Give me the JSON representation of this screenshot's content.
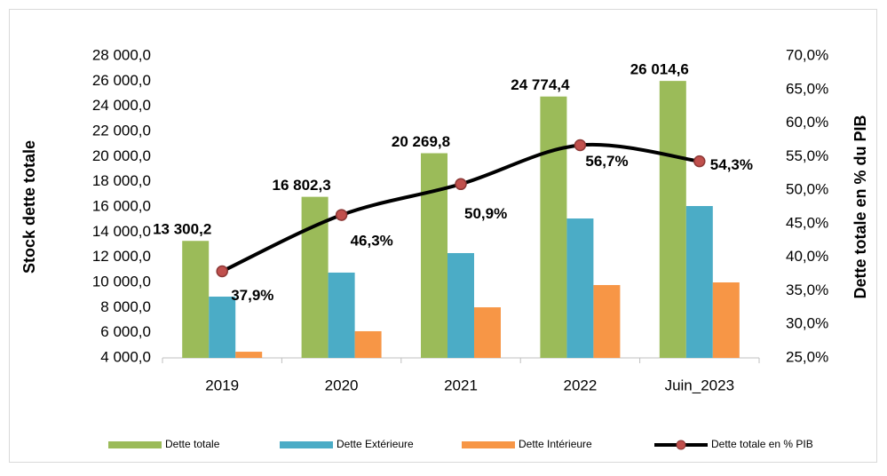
{
  "chart_data": {
    "type": "bar",
    "categories": [
      "2019",
      "2020",
      "2021",
      "2022",
      "Juin_2023"
    ],
    "ylabel": "Stock  dette  totale",
    "y2label": "Dette totale en % du PIB",
    "ylim": [
      4000,
      28000
    ],
    "yticks": [
      {
        "value": 4000,
        "label": "4 000,0"
      },
      {
        "value": 6000,
        "label": "6 000,0"
      },
      {
        "value": 8000,
        "label": "8 000,0"
      },
      {
        "value": 10000,
        "label": "10 000,0"
      },
      {
        "value": 12000,
        "label": "12 000,0"
      },
      {
        "value": 14000,
        "label": "14 000,0"
      },
      {
        "value": 16000,
        "label": "16 000,0"
      },
      {
        "value": 18000,
        "label": "18 000,0"
      },
      {
        "value": 20000,
        "label": "20 000,0"
      },
      {
        "value": 22000,
        "label": "22 000,0"
      },
      {
        "value": 24000,
        "label": "24 000,0"
      },
      {
        "value": 26000,
        "label": "26 000,0"
      },
      {
        "value": 28000,
        "label": "28 000,0"
      }
    ],
    "y2lim": [
      25,
      70
    ],
    "y2ticks": [
      {
        "value": 25,
        "label": "25,0%"
      },
      {
        "value": 30,
        "label": "30,0%"
      },
      {
        "value": 35,
        "label": "35,0%"
      },
      {
        "value": 40,
        "label": "40,0%"
      },
      {
        "value": 45,
        "label": "45,0%"
      },
      {
        "value": 50,
        "label": "50,0%"
      },
      {
        "value": 55,
        "label": "55,0%"
      },
      {
        "value": 60,
        "label": "60,0%"
      },
      {
        "value": 65,
        "label": "65,0%"
      },
      {
        "value": 70,
        "label": "70,0%"
      }
    ],
    "legend": "bottom",
    "series": [
      {
        "name": "Dette totale",
        "color": "#9bbb59",
        "type": "bar",
        "values": [
          13300.2,
          16802.3,
          20269.8,
          24774.4,
          26014.6
        ],
        "value_labels": [
          "13 300,2",
          "16 802,3",
          "20 269,8",
          "24 774,4",
          "26 014,6"
        ]
      },
      {
        "name": "Dette Extérieure",
        "color": "#4bacc6",
        "type": "bar",
        "values": [
          8870,
          10780,
          12330,
          15080,
          16070
        ]
      },
      {
        "name": "Dette Intérieure",
        "color": "#f79646",
        "type": "bar",
        "values": [
          4490,
          6120,
          8020,
          9790,
          10000
        ]
      },
      {
        "name": "Dette totale en % PIB",
        "color": "#000000",
        "marker_color": "#c0504d",
        "type": "line",
        "axis": "y2",
        "values": [
          37.9,
          46.3,
          50.9,
          56.7,
          54.3
        ],
        "value_labels": [
          "37,9%",
          "46,3%",
          "50,9%",
          "56,7%",
          "54,3%"
        ]
      }
    ]
  }
}
